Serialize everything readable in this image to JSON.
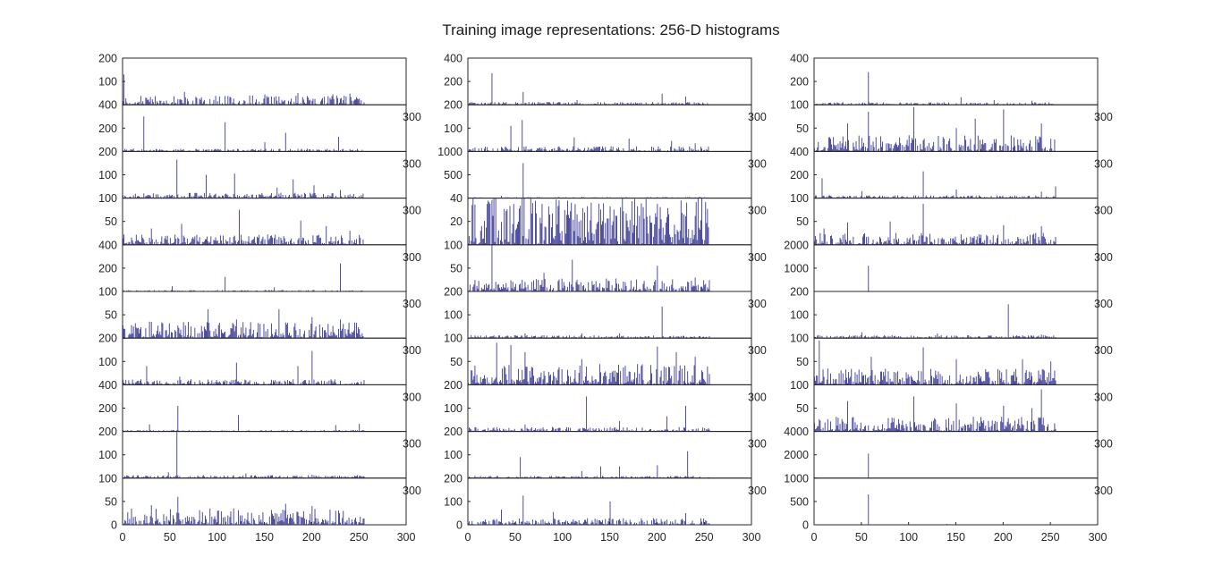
{
  "title": "Training image representations: 256-D histograms",
  "chart_data": {
    "type": "bar",
    "title": "Training image representations: 256-D histograms",
    "layout": "10 rows x 3 columns of subplots",
    "bins": 256,
    "xlim": [
      0,
      300
    ],
    "xticks": [
      0,
      50,
      100,
      150,
      200,
      250,
      300
    ],
    "bar_color": "#3a3a96",
    "grid": false,
    "columns": [
      {
        "subplots": [
          {
            "ylim": [
              0,
              200
            ],
            "yticks": [
              100,
              200
            ],
            "spikes": [
              [
                1,
                130
              ],
              [
                65,
                55
              ],
              [
                108,
                38
              ],
              [
                150,
                45
              ],
              [
                185,
                50
              ],
              [
                222,
                45
              ],
              [
                240,
                48
              ]
            ],
            "base": 25
          },
          {
            "ylim": [
              0,
              400
            ],
            "yticks": [
              200,
              400
            ],
            "spikes": [
              [
                22,
                300
              ],
              [
                108,
                250
              ],
              [
                172,
                160
              ],
              [
                228,
                125
              ],
              [
                150,
                80
              ]
            ],
            "base": 15
          },
          {
            "ylim": [
              0,
              200
            ],
            "yticks": [
              100,
              200
            ],
            "spikes": [
              [
                57,
                165
              ],
              [
                88,
                100
              ],
              [
                118,
                105
              ],
              [
                163,
                45
              ],
              [
                180,
                80
              ],
              [
                202,
                55
              ],
              [
                230,
                35
              ]
            ],
            "base": 15
          },
          {
            "ylim": [
              0,
              100
            ],
            "yticks": [
              50,
              100
            ],
            "spikes": [
              [
                123,
                75
              ],
              [
                62,
                45
              ],
              [
                188,
                52
              ],
              [
                215,
                40
              ],
              [
                240,
                30
              ],
              [
                30,
                35
              ]
            ],
            "base": 14
          },
          {
            "ylim": [
              0,
              400
            ],
            "yticks": [
              200,
              400
            ],
            "spikes": [
              [
                230,
                240
              ],
              [
                108,
                125
              ],
              [
                52,
                45
              ],
              [
                160,
                35
              ]
            ],
            "base": 8
          },
          {
            "ylim": [
              0,
              100
            ],
            "yticks": [
              50,
              100
            ],
            "spikes": [
              [
                90,
                62
              ],
              [
                165,
                62
              ],
              [
                200,
                45
              ],
              [
                230,
                40
              ],
              [
                30,
                35
              ],
              [
                120,
                40
              ]
            ],
            "base": 22
          },
          {
            "ylim": [
              0,
              200
            ],
            "yticks": [
              100,
              200
            ],
            "spikes": [
              [
                200,
                145
              ],
              [
                120,
                95
              ],
              [
                25,
                80
              ],
              [
                185,
                80
              ],
              [
                60,
                35
              ]
            ],
            "base": 15
          },
          {
            "ylim": [
              0,
              400
            ],
            "yticks": [
              200,
              400
            ],
            "spikes": [
              [
                58,
                220
              ],
              [
                122,
                140
              ],
              [
                28,
                60
              ],
              [
                225,
                55
              ],
              [
                250,
                65
              ]
            ],
            "base": 8
          },
          {
            "ylim": [
              0,
              200
            ],
            "yticks": [
              100,
              200
            ],
            "spikes": [
              [
                57,
                200
              ],
              [
                48,
                25
              ],
              [
                130,
                20
              ],
              [
                200,
                15
              ]
            ],
            "base": 8
          },
          {
            "ylim": [
              0,
              100
            ],
            "yticks": [
              0,
              50,
              100
            ],
            "spikes": [
              [
                58,
                60
              ],
              [
                172,
                45
              ],
              [
                200,
                40
              ],
              [
                225,
                30
              ],
              [
                30,
                42
              ],
              [
                100,
                30
              ]
            ],
            "base": 22
          }
        ]
      },
      {
        "subplots": [
          {
            "ylim": [
              0,
              400
            ],
            "yticks": [
              200,
              400
            ],
            "spikes": [
              [
                25,
                270
              ],
              [
                58,
                110
              ],
              [
                205,
                95
              ],
              [
                230,
                70
              ],
              [
                115,
                40
              ]
            ],
            "base": 15
          },
          {
            "ylim": [
              0,
              200
            ],
            "yticks": [
              100,
              200
            ],
            "spikes": [
              [
                57,
                135
              ],
              [
                45,
                110
              ],
              [
                112,
                60
              ],
              [
                170,
                55
              ],
              [
                215,
                45
              ],
              [
                240,
                35
              ]
            ],
            "base": 14
          },
          {
            "ylim": [
              0,
              1000
            ],
            "yticks": [
              500,
              1000
            ],
            "spikes": [
              [
                58,
                750
              ],
              [
                35,
                50
              ],
              [
                120,
                30
              ],
              [
                200,
                25
              ]
            ],
            "base": 15
          },
          {
            "ylim": [
              0,
              40
            ],
            "yticks": [
              20,
              40
            ],
            "spikes": [
              [
                5,
                40
              ],
              [
                20,
                35
              ],
              [
                48,
                35
              ],
              [
                78,
                35
              ],
              [
                150,
                33
              ],
              [
                200,
                35
              ],
              [
                225,
                38
              ]
            ],
            "base": 26
          },
          {
            "ylim": [
              0,
              100
            ],
            "yticks": [
              50,
              100
            ],
            "spikes": [
              [
                25,
                100
              ],
              [
                110,
                68
              ],
              [
                200,
                55
              ],
              [
                80,
                40
              ],
              [
                240,
                30
              ]
            ],
            "base": 18
          },
          {
            "ylim": [
              0,
              200
            ],
            "yticks": [
              100,
              200
            ],
            "spikes": [
              [
                205,
                135
              ],
              [
                120,
                20
              ],
              [
                60,
                20
              ],
              [
                160,
                20
              ]
            ],
            "base": 8
          },
          {
            "ylim": [
              0,
              100
            ],
            "yticks": [
              50,
              100
            ],
            "spikes": [
              [
                30,
                90
              ],
              [
                45,
                85
              ],
              [
                60,
                70
              ],
              [
                200,
                82
              ],
              [
                220,
                70
              ],
              [
                120,
                55
              ],
              [
                240,
                60
              ]
            ],
            "base": 28
          },
          {
            "ylim": [
              0,
              200
            ],
            "yticks": [
              100,
              200
            ],
            "spikes": [
              [
                125,
                150
              ],
              [
                230,
                110
              ],
              [
                210,
                65
              ],
              [
                160,
                45
              ],
              [
                60,
                30
              ]
            ],
            "base": 12
          },
          {
            "ylim": [
              0,
              200
            ],
            "yticks": [
              100,
              200
            ],
            "spikes": [
              [
                232,
                115
              ],
              [
                55,
                90
              ],
              [
                140,
                50
              ],
              [
                160,
                50
              ],
              [
                200,
                55
              ],
              [
                120,
                30
              ]
            ],
            "base": 6
          },
          {
            "ylim": [
              0,
              200
            ],
            "yticks": [
              0,
              100,
              200
            ],
            "spikes": [
              [
                58,
                125
              ],
              [
                150,
                100
              ],
              [
                90,
                55
              ],
              [
                35,
                65
              ],
              [
                230,
                50
              ]
            ],
            "base": 18
          }
        ]
      },
      {
        "subplots": [
          {
            "ylim": [
              0,
              400
            ],
            "yticks": [
              200,
              400
            ],
            "spikes": [
              [
                57,
                280
              ],
              [
                155,
                65
              ],
              [
                190,
                40
              ],
              [
                230,
                35
              ]
            ],
            "base": 14
          },
          {
            "ylim": [
              0,
              100
            ],
            "yticks": [
              50,
              100
            ],
            "spikes": [
              [
                57,
                85
              ],
              [
                105,
                95
              ],
              [
                200,
                90
              ],
              [
                170,
                70
              ],
              [
                35,
                60
              ],
              [
                150,
                50
              ],
              [
                240,
                60
              ]
            ],
            "base": 22
          },
          {
            "ylim": [
              0,
              400
            ],
            "yticks": [
              200,
              400
            ],
            "spikes": [
              [
                115,
                230
              ],
              [
                8,
                170
              ],
              [
                50,
                60
              ],
              [
                150,
                75
              ],
              [
                240,
                55
              ],
              [
                255,
                100
              ]
            ],
            "base": 15
          },
          {
            "ylim": [
              0,
              100
            ],
            "yticks": [
              50,
              100
            ],
            "spikes": [
              [
                115,
                88
              ],
              [
                35,
                48
              ],
              [
                80,
                50
              ],
              [
                200,
                42
              ],
              [
                240,
                40
              ],
              [
                10,
                35
              ]
            ],
            "base": 16
          },
          {
            "ylim": [
              0,
              2000
            ],
            "yticks": [
              1000,
              2000
            ],
            "spikes": [
              [
                57,
                1100
              ]
            ],
            "base": 0
          },
          {
            "ylim": [
              0,
              200
            ],
            "yticks": [
              100,
              200
            ],
            "spikes": [
              [
                205,
                145
              ],
              [
                50,
                25
              ],
              [
                130,
                20
              ],
              [
                240,
                15
              ]
            ],
            "base": 8
          },
          {
            "ylim": [
              0,
              100
            ],
            "yticks": [
              50,
              100
            ],
            "spikes": [
              [
                5,
                95
              ],
              [
                115,
                80
              ],
              [
                60,
                60
              ],
              [
                150,
                55
              ],
              [
                220,
                55
              ],
              [
                250,
                50
              ]
            ],
            "base": 22
          },
          {
            "ylim": [
              0,
              100
            ],
            "yticks": [
              50,
              100
            ],
            "spikes": [
              [
                240,
                90
              ],
              [
                105,
                75
              ],
              [
                35,
                65
              ],
              [
                150,
                60
              ],
              [
                200,
                55
              ],
              [
                230,
                50
              ]
            ],
            "base": 20
          },
          {
            "ylim": [
              0,
              4000
            ],
            "yticks": [
              2000,
              4000
            ],
            "spikes": [
              [
                57,
                2100
              ]
            ],
            "base": 0
          },
          {
            "ylim": [
              0,
              1000
            ],
            "yticks": [
              0,
              500,
              1000
            ],
            "spikes": [
              [
                57,
                650
              ],
              [
                140,
                20
              ],
              [
                10,
                10
              ]
            ],
            "base": 0
          }
        ]
      }
    ]
  }
}
